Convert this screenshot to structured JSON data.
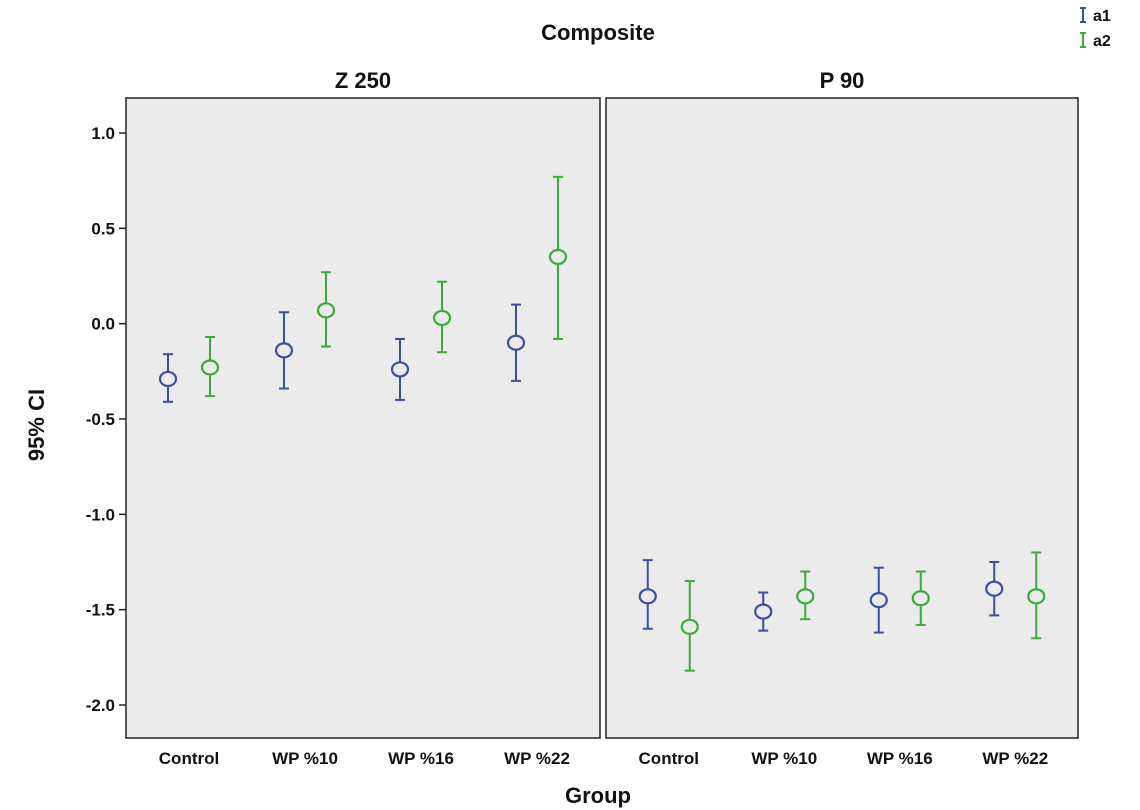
{
  "chart_data": {
    "type": "scatter",
    "subtype": "error-bar",
    "title": "Composite",
    "xlabel": "Group",
    "ylabel": "95% CI",
    "ylim": [
      -2.0,
      1.0
    ],
    "yticks": [
      "1.0",
      "0.5",
      "0.0",
      "-0.5",
      "-1.0",
      "-1.5",
      "-2.0"
    ],
    "categories": [
      "Control",
      "WP %10",
      "WP %16",
      "WP %22"
    ],
    "legend": {
      "position": "top-right",
      "entries": [
        "a1",
        "a2"
      ]
    },
    "grid": false,
    "colors": {
      "a1": "#3b4fa0",
      "a2": "#3aab3a",
      "panel": "#ebebeb"
    },
    "panels": [
      {
        "title": "Z 250",
        "series": [
          {
            "name": "a1",
            "mean": [
              -0.29,
              -0.14,
              -0.24,
              -0.1
            ],
            "lower": [
              -0.41,
              -0.34,
              -0.4,
              -0.3
            ],
            "upper": [
              -0.16,
              0.06,
              -0.08,
              0.1
            ]
          },
          {
            "name": "a2",
            "mean": [
              -0.23,
              0.07,
              0.03,
              0.35
            ],
            "lower": [
              -0.38,
              -0.12,
              -0.15,
              -0.08
            ],
            "upper": [
              -0.07,
              0.27,
              0.22,
              0.77
            ]
          }
        ]
      },
      {
        "title": "P 90",
        "series": [
          {
            "name": "a1",
            "mean": [
              -1.43,
              -1.51,
              -1.45,
              -1.39
            ],
            "lower": [
              -1.6,
              -1.61,
              -1.62,
              -1.53
            ],
            "upper": [
              -1.24,
              -1.41,
              -1.28,
              -1.25
            ]
          },
          {
            "name": "a2",
            "mean": [
              -1.59,
              -1.43,
              -1.44,
              -1.43
            ],
            "lower": [
              -1.82,
              -1.55,
              -1.58,
              -1.65
            ],
            "upper": [
              -1.35,
              -1.3,
              -1.3,
              -1.2
            ]
          }
        ]
      }
    ]
  }
}
